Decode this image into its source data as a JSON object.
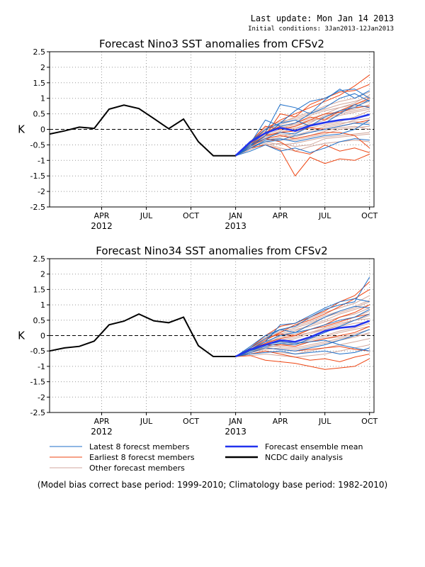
{
  "header": {
    "last_update": "Last update: Mon Jan 14 2013",
    "initial_condition": "Initial conditions: 3Jan2013-12Jan2013"
  },
  "footnote": "(Model bias correct base period: 1999-2010; Climatology base period: 1982-2010)",
  "legend": [
    {
      "label": "Latest 8 forecst members",
      "color": "#1f6fc8"
    },
    {
      "label": "Earliest 8 forecst members",
      "color": "#ee4411"
    },
    {
      "label": "Other forecast members",
      "color": "#d2a79c"
    },
    {
      "label": "Forecast ensemble mean",
      "color": "#2233ee"
    },
    {
      "label": "NCDC daily analysis",
      "color": "#000000"
    }
  ],
  "chart_data": [
    {
      "type": "line",
      "title": "Forecast Nino3 SST anomalies from CFSv2",
      "ylabel": "K",
      "ylim": [
        -2.5,
        2.5
      ],
      "yticks": [
        "2.5",
        "2",
        "1.5",
        "1",
        "0.5",
        "0",
        "-0.5",
        "-1",
        "-1.5",
        "-2",
        "-2.5"
      ],
      "xlim_months": [
        -0.5,
        21.3
      ],
      "xticks": [
        {
          "month": 3,
          "label": "APR",
          "year": "2012"
        },
        {
          "month": 6,
          "label": "JUL",
          "year": ""
        },
        {
          "month": 9,
          "label": "OCT",
          "year": ""
        },
        {
          "month": 12,
          "label": "JAN",
          "year": "2013"
        },
        {
          "month": 15,
          "label": "APR",
          "year": ""
        },
        {
          "month": 18,
          "label": "JUL",
          "year": ""
        },
        {
          "month": 21,
          "label": "OCT",
          "year": ""
        }
      ],
      "grid": true,
      "zero_line": "dashed",
      "observed": {
        "name": "NCDC daily analysis",
        "x": [
          -0.5,
          0.5,
          1.5,
          2.5,
          3.5,
          4.5,
          5.5,
          6.5,
          7.5,
          8.5,
          9.5,
          10.5,
          11.5,
          12
        ],
        "y": [
          -0.15,
          -0.05,
          0.07,
          0.03,
          0.65,
          0.78,
          0.67,
          0.35,
          0.02,
          0.33,
          -0.4,
          -0.85,
          -0.85,
          -0.85
        ]
      },
      "ensemble_mean": {
        "name": "Forecast ensemble mean",
        "x": [
          12,
          13,
          14,
          15,
          16,
          17,
          18,
          19,
          20,
          21
        ],
        "y": [
          -0.85,
          -0.4,
          -0.12,
          0.05,
          -0.05,
          0.12,
          0.22,
          0.3,
          0.35,
          0.48
        ]
      },
      "members": {
        "x": [
          12,
          13,
          14,
          15,
          16,
          17,
          18,
          19,
          20,
          21
        ],
        "latest": [
          [
            -0.85,
            -0.5,
            -0.1,
            0.8,
            0.7,
            0.5,
            0.95,
            1.3,
            1.0,
            1.25
          ],
          [
            -0.85,
            -0.55,
            -0.2,
            0.2,
            0.6,
            0.9,
            1.0,
            1.25,
            1.3,
            1.0
          ],
          [
            -0.85,
            -0.45,
            0.3,
            0.1,
            0.2,
            0.5,
            0.7,
            1.0,
            1.15,
            0.9
          ],
          [
            -0.85,
            -0.5,
            -0.3,
            -0.1,
            -0.15,
            0.1,
            0.2,
            0.5,
            0.8,
            0.7
          ],
          [
            -0.85,
            -0.6,
            -0.4,
            -0.35,
            -0.2,
            -0.1,
            0.0,
            0.1,
            0.2,
            0.15
          ],
          [
            -0.85,
            -0.7,
            -0.5,
            -0.7,
            -0.6,
            -0.75,
            -0.6,
            -0.4,
            -0.3,
            -0.35
          ],
          [
            -0.85,
            -0.6,
            -0.35,
            -0.3,
            -0.4,
            -0.3,
            -0.2,
            -0.15,
            0.0,
            0.3
          ],
          [
            -0.85,
            -0.4,
            0.0,
            0.2,
            0.3,
            0.1,
            0.4,
            0.6,
            0.7,
            0.95
          ]
        ],
        "earliest": [
          [
            -0.85,
            -0.45,
            0.0,
            0.3,
            0.5,
            0.7,
            0.9,
            1.1,
            1.4,
            1.75
          ],
          [
            -0.85,
            -0.5,
            -0.2,
            0.5,
            0.4,
            0.8,
            1.0,
            1.2,
            1.25,
            1.45
          ],
          [
            -0.85,
            -0.6,
            -0.5,
            -0.65,
            -1.5,
            -0.9,
            -1.1,
            -0.95,
            -1.0,
            -0.8
          ],
          [
            -0.85,
            -0.55,
            -0.3,
            -0.4,
            -0.7,
            -0.8,
            -0.5,
            -0.7,
            -0.6,
            -0.75
          ],
          [
            -0.85,
            -0.45,
            -0.1,
            0.1,
            0.2,
            0.4,
            0.3,
            0.6,
            0.8,
            1.0
          ],
          [
            -0.85,
            -0.55,
            -0.2,
            -0.1,
            -0.05,
            0.05,
            0.0,
            0.1,
            0.2,
            0.3
          ],
          [
            -0.85,
            -0.5,
            -0.3,
            -0.2,
            -0.3,
            -0.2,
            -0.1,
            -0.1,
            -0.2,
            -0.6
          ],
          [
            -0.85,
            -0.4,
            0.1,
            0.0,
            0.1,
            0.3,
            0.5,
            0.55,
            0.7,
            0.75
          ]
        ],
        "other": [
          [
            -0.85,
            -0.5,
            -0.2,
            0.0,
            0.2,
            0.35,
            0.5,
            0.7,
            0.8,
            0.95
          ],
          [
            -0.85,
            -0.45,
            -0.15,
            0.1,
            0.0,
            0.2,
            0.45,
            0.6,
            0.75,
            0.9
          ],
          [
            -0.85,
            -0.55,
            -0.3,
            -0.2,
            -0.25,
            -0.1,
            0.05,
            0.15,
            0.3,
            0.35
          ],
          [
            -0.85,
            -0.6,
            -0.4,
            -0.5,
            -0.45,
            -0.35,
            -0.25,
            -0.2,
            -0.15,
            -0.1
          ],
          [
            -0.85,
            -0.5,
            -0.25,
            -0.05,
            0.1,
            0.25,
            0.4,
            0.55,
            0.65,
            0.8
          ],
          [
            -0.85,
            -0.4,
            0.05,
            0.25,
            0.35,
            0.5,
            0.65,
            0.8,
            0.9,
            1.05
          ],
          [
            -0.85,
            -0.65,
            -0.45,
            -0.6,
            -0.7,
            -0.55,
            -0.45,
            -0.4,
            -0.35,
            -0.4
          ],
          [
            -0.85,
            -0.5,
            -0.35,
            -0.25,
            -0.1,
            0.05,
            0.15,
            0.25,
            0.4,
            0.6
          ],
          [
            -0.85,
            -0.45,
            -0.1,
            0.15,
            0.3,
            0.45,
            0.6,
            0.7,
            0.85,
            1.1
          ],
          [
            -0.85,
            -0.55,
            -0.2,
            -0.15,
            -0.2,
            -0.05,
            0.1,
            0.2,
            0.25,
            0.2
          ],
          [
            -0.85,
            -0.5,
            -0.3,
            -0.35,
            -0.3,
            -0.2,
            -0.05,
            0.05,
            0.1,
            0.0
          ],
          [
            -0.85,
            -0.4,
            -0.05,
            0.2,
            0.4,
            0.55,
            0.75,
            0.9,
            1.0,
            1.2
          ],
          [
            -0.85,
            -0.6,
            -0.5,
            -0.45,
            -0.55,
            -0.5,
            -0.3,
            -0.25,
            -0.2,
            -0.15
          ],
          [
            -0.85,
            -0.5,
            -0.15,
            0.05,
            0.15,
            0.3,
            0.35,
            0.5,
            0.6,
            0.7
          ],
          [
            -0.85,
            -0.45,
            -0.25,
            -0.1,
            0.05,
            0.15,
            0.3,
            0.45,
            0.55,
            0.65
          ],
          [
            -0.85,
            -0.55,
            -0.4,
            -0.3,
            -0.35,
            -0.25,
            -0.15,
            0.0,
            0.05,
            0.1
          ]
        ]
      }
    },
    {
      "type": "line",
      "title": "Forecast Nino34 SST anomalies from CFSv2",
      "ylabel": "K",
      "ylim": [
        -2.5,
        2.5
      ],
      "yticks": [
        "2.5",
        "2",
        "1.5",
        "1",
        "0.5",
        "0",
        "-0.5",
        "-1",
        "-1.5",
        "-2",
        "-2.5"
      ],
      "xlim_months": [
        -0.5,
        21.3
      ],
      "xticks": [
        {
          "month": 3,
          "label": "APR",
          "year": "2012"
        },
        {
          "month": 6,
          "label": "JUL",
          "year": ""
        },
        {
          "month": 9,
          "label": "OCT",
          "year": ""
        },
        {
          "month": 12,
          "label": "JAN",
          "year": "2013"
        },
        {
          "month": 15,
          "label": "APR",
          "year": ""
        },
        {
          "month": 18,
          "label": "JUL",
          "year": ""
        },
        {
          "month": 21,
          "label": "OCT",
          "year": ""
        }
      ],
      "grid": true,
      "zero_line": "dashed",
      "observed": {
        "name": "NCDC daily analysis",
        "x": [
          -0.5,
          0.5,
          1.5,
          2.5,
          3.5,
          4.5,
          5.5,
          6.5,
          7.5,
          8.5,
          9.5,
          10.5,
          11.5,
          12
        ],
        "y": [
          -0.5,
          -0.4,
          -0.35,
          -0.18,
          0.35,
          0.47,
          0.7,
          0.48,
          0.42,
          0.6,
          -0.33,
          -0.68,
          -0.68,
          -0.68
        ]
      },
      "ensemble_mean": {
        "name": "Forecast ensemble mean",
        "x": [
          12,
          13,
          14,
          15,
          16,
          17,
          18,
          19,
          20,
          21
        ],
        "y": [
          -0.68,
          -0.45,
          -0.3,
          -0.15,
          -0.2,
          -0.05,
          0.15,
          0.25,
          0.3,
          0.48
        ]
      },
      "members": {
        "x": [
          12,
          13,
          14,
          15,
          16,
          17,
          18,
          19,
          20,
          21
        ],
        "latest": [
          [
            -0.68,
            -0.4,
            -0.1,
            0.2,
            0.3,
            0.6,
            0.85,
            1.0,
            1.1,
            1.9
          ],
          [
            -0.68,
            -0.45,
            -0.2,
            0.35,
            0.4,
            0.65,
            0.9,
            1.1,
            1.2,
            1.1
          ],
          [
            -0.68,
            -0.35,
            0.0,
            0.2,
            0.1,
            0.35,
            0.6,
            0.8,
            0.95,
            0.9
          ],
          [
            -0.68,
            -0.5,
            -0.35,
            -0.25,
            -0.3,
            -0.1,
            0.1,
            0.3,
            0.5,
            0.7
          ],
          [
            -0.68,
            -0.55,
            -0.4,
            -0.45,
            -0.5,
            -0.4,
            -0.3,
            -0.15,
            0.0,
            0.2
          ],
          [
            -0.68,
            -0.6,
            -0.55,
            -0.5,
            -0.6,
            -0.55,
            -0.5,
            -0.6,
            -0.55,
            -0.4
          ],
          [
            -0.68,
            -0.5,
            -0.3,
            -0.2,
            -0.25,
            -0.2,
            -0.15,
            -0.3,
            -0.4,
            -0.5
          ],
          [
            -0.68,
            -0.45,
            -0.2,
            0.0,
            0.1,
            0.2,
            0.35,
            0.5,
            0.6,
            0.85
          ]
        ],
        "earliest": [
          [
            -0.68,
            -0.4,
            0.0,
            0.3,
            0.4,
            0.6,
            0.8,
            1.1,
            1.3,
            1.75
          ],
          [
            -0.68,
            -0.45,
            -0.15,
            0.1,
            0.35,
            0.5,
            0.7,
            0.95,
            1.2,
            1.5
          ],
          [
            -0.68,
            -0.65,
            -0.8,
            -0.85,
            -0.9,
            -1.0,
            -1.1,
            -1.05,
            -1.0,
            -0.75
          ],
          [
            -0.68,
            -0.6,
            -0.5,
            -0.6,
            -0.7,
            -0.8,
            -0.75,
            -0.85,
            -0.7,
            -0.6
          ],
          [
            -0.68,
            -0.45,
            -0.25,
            -0.1,
            0.0,
            0.2,
            0.35,
            0.6,
            0.75,
            1.0
          ],
          [
            -0.68,
            -0.5,
            -0.3,
            -0.3,
            -0.35,
            -0.2,
            -0.1,
            0.0,
            0.1,
            0.3
          ],
          [
            -0.68,
            -0.55,
            -0.4,
            -0.45,
            -0.5,
            -0.45,
            -0.4,
            -0.35,
            -0.45,
            -0.5
          ],
          [
            -0.68,
            -0.4,
            -0.1,
            0.05,
            0.0,
            0.2,
            0.3,
            0.45,
            0.6,
            0.7
          ]
        ],
        "other": [
          [
            -0.68,
            -0.45,
            -0.2,
            0.0,
            0.15,
            0.35,
            0.5,
            0.7,
            0.85,
            1.0
          ],
          [
            -0.68,
            -0.5,
            -0.3,
            -0.2,
            -0.1,
            0.05,
            0.2,
            0.35,
            0.5,
            0.65
          ],
          [
            -0.68,
            -0.4,
            -0.1,
            0.1,
            0.25,
            0.4,
            0.6,
            0.75,
            0.9,
            1.1
          ],
          [
            -0.68,
            -0.55,
            -0.45,
            -0.4,
            -0.45,
            -0.35,
            -0.25,
            -0.15,
            -0.05,
            0.1
          ],
          [
            -0.68,
            -0.45,
            -0.25,
            -0.05,
            0.05,
            0.2,
            0.35,
            0.5,
            0.6,
            0.8
          ],
          [
            -0.68,
            -0.6,
            -0.5,
            -0.55,
            -0.6,
            -0.5,
            -0.4,
            -0.3,
            -0.2,
            -0.1
          ],
          [
            -0.68,
            -0.5,
            -0.35,
            -0.25,
            -0.2,
            -0.1,
            0.0,
            0.15,
            0.25,
            0.4
          ],
          [
            -0.68,
            -0.4,
            -0.15,
            0.15,
            0.35,
            0.55,
            0.75,
            0.9,
            1.05,
            1.3
          ],
          [
            -0.68,
            -0.55,
            -0.4,
            -0.3,
            -0.3,
            -0.2,
            -0.1,
            -0.05,
            0.05,
            0.2
          ],
          [
            -0.68,
            -0.45,
            -0.2,
            -0.1,
            0.0,
            0.1,
            0.25,
            0.4,
            0.5,
            0.55
          ],
          [
            -0.68,
            -0.65,
            -0.6,
            -0.65,
            -0.7,
            -0.65,
            -0.6,
            -0.5,
            -0.4,
            -0.3
          ],
          [
            -0.68,
            -0.5,
            -0.25,
            0.05,
            0.2,
            0.3,
            0.45,
            0.6,
            0.7,
            0.9
          ],
          [
            -0.68,
            -0.45,
            -0.3,
            -0.15,
            -0.05,
            0.1,
            0.2,
            0.3,
            0.4,
            0.45
          ],
          [
            -0.68,
            -0.55,
            -0.35,
            -0.35,
            -0.4,
            -0.3,
            -0.2,
            -0.1,
            0.0,
            0.05
          ],
          [
            -0.68,
            -0.4,
            -0.05,
            0.2,
            0.3,
            0.45,
            0.65,
            0.8,
            0.95,
            1.15
          ],
          [
            -0.68,
            -0.5,
            -0.4,
            -0.3,
            -0.25,
            -0.15,
            -0.05,
            0.1,
            0.2,
            0.3
          ]
        ]
      }
    }
  ]
}
